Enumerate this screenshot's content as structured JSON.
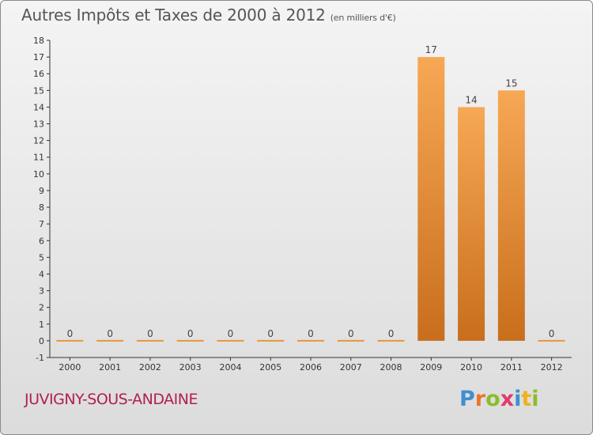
{
  "title": "Autres Impôts et Taxes de 2000 à 2012",
  "title_unit": "(en milliers d'€)",
  "city": "JUVIGNY-SOUS-ANDAINE",
  "logo": "Proxiti",
  "colors": {
    "bar_light": "#f7a855",
    "bar_dark": "#c86e1c",
    "zero_line": "#e8963a",
    "axis": "#333333",
    "grid": "#cfcfcf"
  },
  "chart_data": {
    "type": "bar",
    "categories": [
      "2000",
      "2001",
      "2002",
      "2003",
      "2004",
      "2005",
      "2006",
      "2007",
      "2008",
      "2009",
      "2010",
      "2011",
      "2012"
    ],
    "values": [
      0,
      0,
      0,
      0,
      0,
      0,
      0,
      0,
      0,
      17,
      14,
      15,
      0
    ],
    "value_labels": [
      "0",
      "0",
      "0",
      "0",
      "0",
      "0",
      "0",
      "0",
      "0",
      "17",
      "14",
      "15",
      "0"
    ],
    "yticks": [
      "-1",
      "0",
      "1",
      "2",
      "3",
      "4",
      "5",
      "6",
      "7",
      "8",
      "9",
      "10",
      "11",
      "12",
      "13",
      "14",
      "15",
      "16",
      "17",
      "18"
    ],
    "ylim": [
      -1,
      18
    ],
    "grid": false
  }
}
